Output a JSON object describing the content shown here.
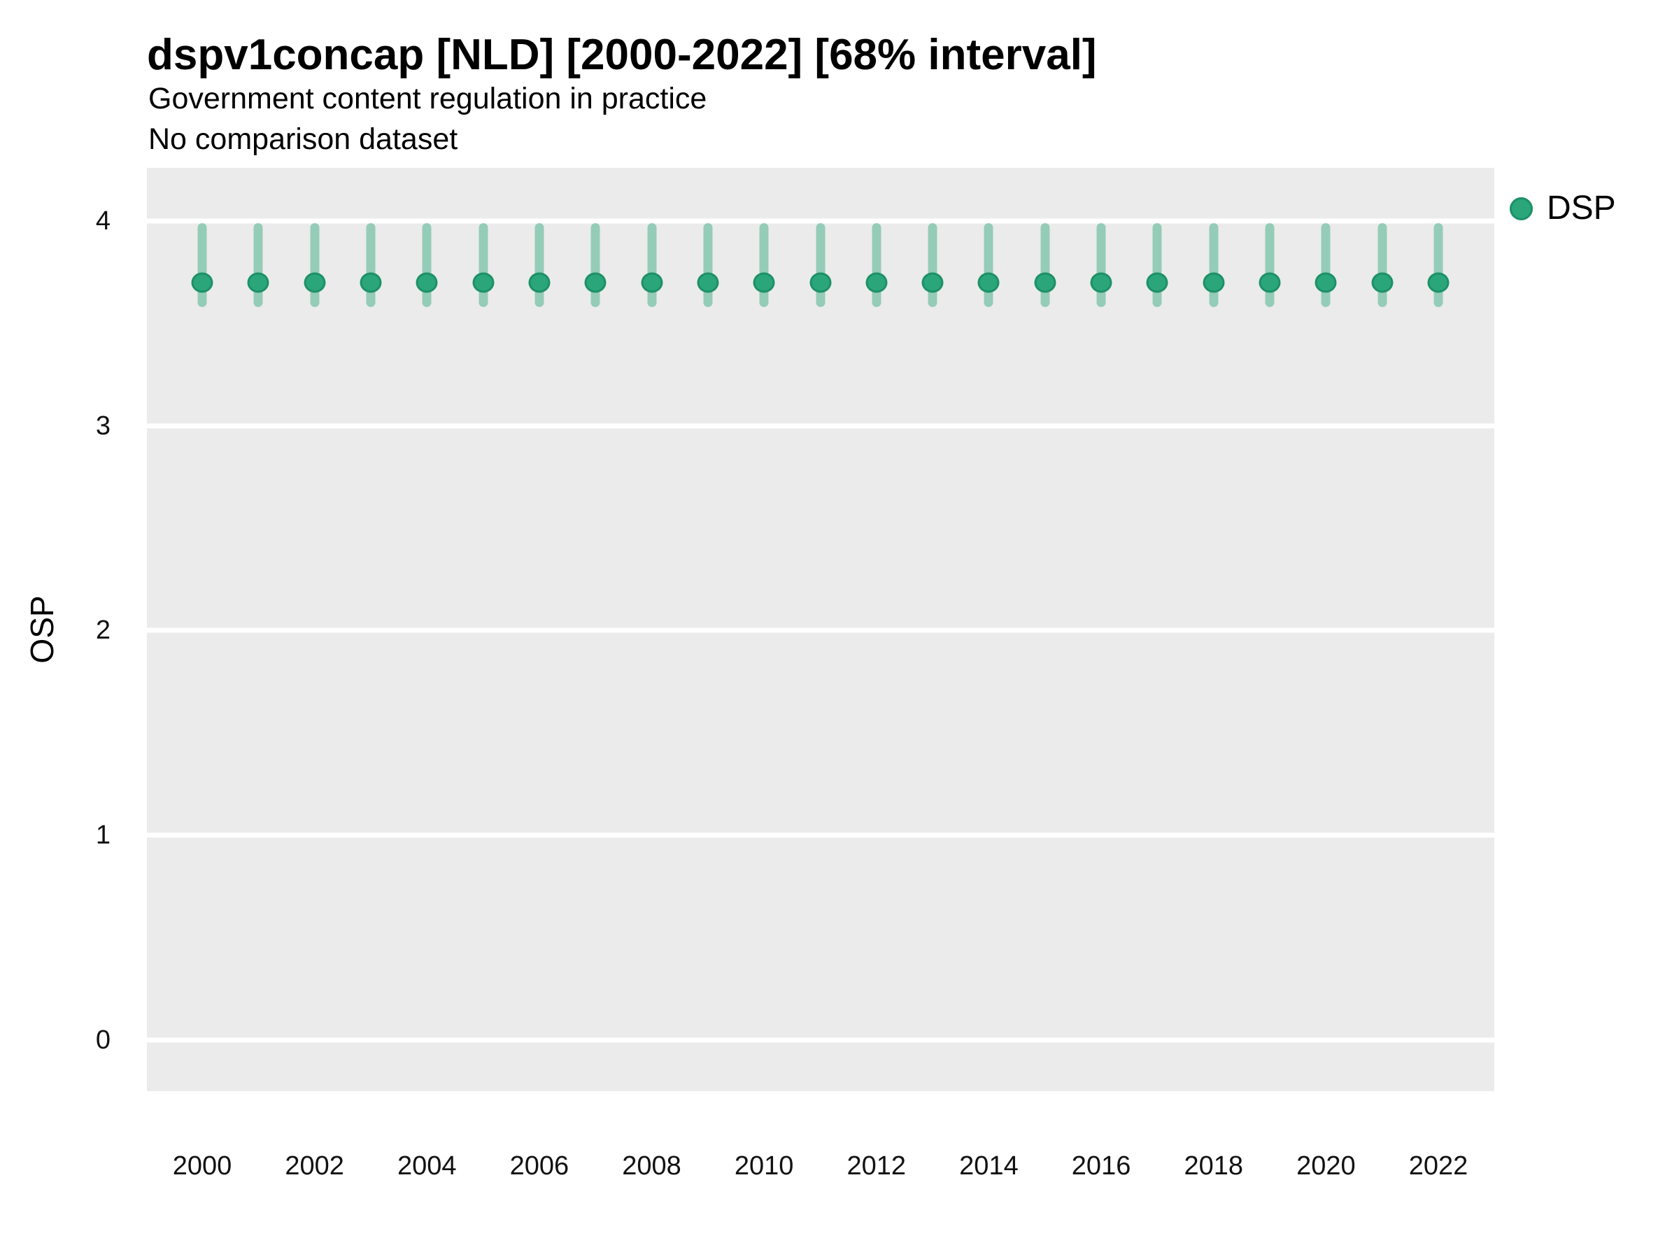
{
  "title": "dspv1concap [NLD] [2000-2022] [68% interval]",
  "subtitle": "Government content regulation in practice",
  "comparison_note": "No comparison dataset",
  "y_axis_label": "OSP",
  "legend": {
    "position": "right-top",
    "items": [
      {
        "label": "DSP",
        "color": "#2aa67a",
        "marker": "circle-icon"
      }
    ]
  },
  "colors": {
    "point_fill": "#2aa67a",
    "point_stroke": "#1e9068",
    "interval_bar": "rgba(42, 166, 122, 0.45)",
    "panel_background": "#ebebeb",
    "gridline": "#ffffff",
    "text": "#000000",
    "axis_text": "#111111"
  },
  "chart_data": {
    "type": "scatter",
    "title": "dspv1concap [NLD] [2000-2022] [68% interval]",
    "subtitle": "Government content regulation in practice",
    "note": "No comparison dataset",
    "xlabel": "",
    "ylabel": "OSP",
    "interval_level": "68%",
    "y_ticks": [
      0,
      1,
      2,
      3,
      4
    ],
    "x_tick_labels": [
      "2000",
      "2002",
      "2004",
      "2006",
      "2008",
      "2010",
      "2012",
      "2014",
      "2016",
      "2018",
      "2020",
      "2022"
    ],
    "xlim_display": [
      1999.0,
      2023.0
    ],
    "ylim_display": [
      -0.25,
      4.26
    ],
    "grid": "horizontal-major-only",
    "legend_position": "right-top",
    "series": [
      {
        "name": "DSP",
        "x": [
          2000,
          2001,
          2002,
          2003,
          2004,
          2005,
          2006,
          2007,
          2008,
          2009,
          2010,
          2011,
          2012,
          2013,
          2014,
          2015,
          2016,
          2017,
          2018,
          2019,
          2020,
          2021,
          2022
        ],
        "point_estimate": [
          3.7,
          3.7,
          3.7,
          3.7,
          3.7,
          3.7,
          3.7,
          3.7,
          3.7,
          3.7,
          3.7,
          3.7,
          3.7,
          3.7,
          3.7,
          3.7,
          3.7,
          3.7,
          3.7,
          3.7,
          3.7,
          3.7,
          3.7
        ],
        "interval_low": [
          3.58,
          3.58,
          3.58,
          3.58,
          3.58,
          3.58,
          3.58,
          3.58,
          3.58,
          3.58,
          3.58,
          3.58,
          3.58,
          3.58,
          3.58,
          3.58,
          3.58,
          3.58,
          3.58,
          3.58,
          3.58,
          3.58,
          3.58
        ],
        "interval_high": [
          3.99,
          3.99,
          3.99,
          3.99,
          3.99,
          3.99,
          3.99,
          3.99,
          3.99,
          3.99,
          3.99,
          3.99,
          3.99,
          3.99,
          3.99,
          3.99,
          3.99,
          3.99,
          3.99,
          3.99,
          3.99,
          3.99,
          3.99
        ]
      }
    ]
  }
}
